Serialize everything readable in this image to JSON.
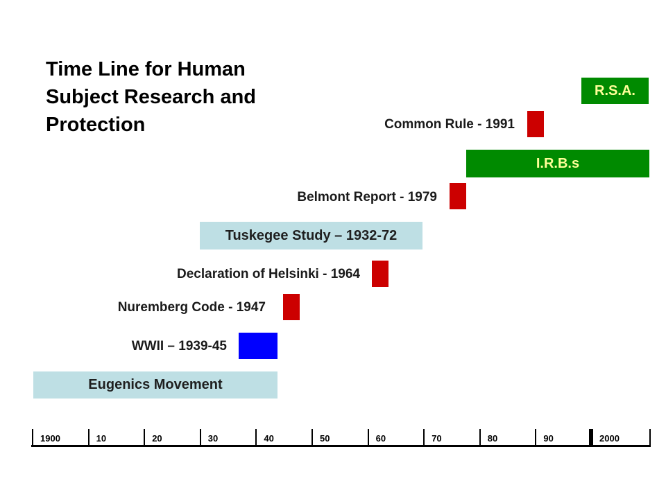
{
  "title": "Time Line for Human Subject Research and Protection",
  "colors": {
    "red": "#cc0000",
    "blue": "#0000ff",
    "green": "#008a00",
    "light_blue": "#bedfe4",
    "green_text": "#ffff99",
    "light_text": "#1f1f1f"
  },
  "events": [
    {
      "id": "rsa",
      "label": "R.S.A.",
      "type": "span-bar",
      "color": "green"
    },
    {
      "id": "common-rule",
      "label": "Common Rule - 1991",
      "type": "marker",
      "year": 1991,
      "color": "red"
    },
    {
      "id": "irbs",
      "label": "I.R.B.s",
      "type": "span-bar",
      "color": "green"
    },
    {
      "id": "belmont",
      "label": "Belmont Report - 1979",
      "type": "marker",
      "year": 1979,
      "color": "red"
    },
    {
      "id": "tuskegee",
      "label": "Tuskegee Study – 1932-72",
      "type": "span-bar",
      "start": 1932,
      "end": 1972,
      "color": "light_blue"
    },
    {
      "id": "helsinki",
      "label": "Declaration of Helsinki - 1964",
      "type": "marker",
      "year": 1964,
      "color": "red"
    },
    {
      "id": "nuremberg",
      "label": "Nuremberg Code - 1947",
      "type": "marker",
      "year": 1947,
      "color": "red"
    },
    {
      "id": "wwii",
      "label": "WWII – 1939-45",
      "type": "marker",
      "start": 1939,
      "end": 1945,
      "color": "blue"
    },
    {
      "id": "eugenics",
      "label": "Eugenics Movement",
      "type": "span-bar",
      "color": "light_blue"
    }
  ],
  "axis": {
    "ticks": [
      {
        "year": 1900,
        "label": "1900"
      },
      {
        "year": 1910,
        "label": "10"
      },
      {
        "year": 1920,
        "label": "20"
      },
      {
        "year": 1930,
        "label": "30"
      },
      {
        "year": 1940,
        "label": "40"
      },
      {
        "year": 1950,
        "label": "50"
      },
      {
        "year": 1960,
        "label": "60"
      },
      {
        "year": 1970,
        "label": "70"
      },
      {
        "year": 1980,
        "label": "80"
      },
      {
        "year": 1990,
        "label": "90"
      },
      {
        "year": 2000,
        "label": "2000"
      }
    ]
  }
}
